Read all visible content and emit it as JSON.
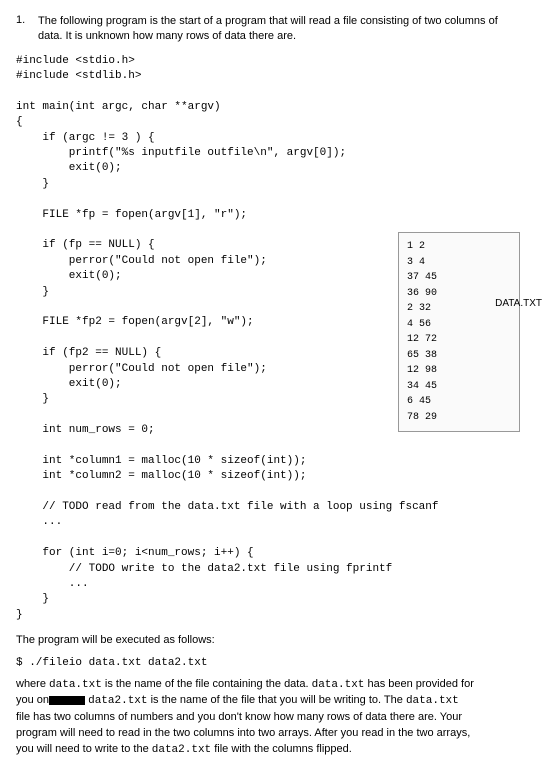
{
  "question": {
    "number": "1.",
    "text_line1": "The following program is the start of a program that will read a file consisting of two columns of",
    "text_line2": "data.  It is unknown how many rows of data there are."
  },
  "code": {
    "include1": "#include <stdio.h>",
    "include2": "#include <stdlib.h>",
    "blank1": "",
    "main_sig": "int main(int argc, char **argv)",
    "brace_open": "{",
    "argc_check": "    if (argc != 3 ) {",
    "printf_usage": "        printf(\"%s inputfile outfile\\n\", argv[0]);",
    "exit1": "        exit(0);",
    "close1": "    }",
    "blank2": "",
    "fopen1": "    FILE *fp = fopen(argv[1], \"r\");",
    "blank3": "",
    "null_check1": "    if (fp == NULL) {",
    "perror1": "        perror(\"Could not open file\");",
    "exit2": "        exit(0);",
    "close2": "    }",
    "blank4": "",
    "fopen2": "    FILE *fp2 = fopen(argv[2], \"w\");",
    "blank5": "",
    "null_check2": "    if (fp2 == NULL) {",
    "perror2": "        perror(\"Could not open file\");",
    "exit3": "        exit(0);",
    "close3": "    }",
    "blank6": "",
    "numrows": "    int num_rows = 0;",
    "blank7": "",
    "malloc1": "    int *column1 = malloc(10 * sizeof(int));",
    "malloc2": "    int *column2 = malloc(10 * sizeof(int));",
    "blank8": "",
    "todo1": "    // TODO read from the data.txt file with a loop using fscanf",
    "dots1": "    ...",
    "blank9": "",
    "forloop": "    for (int i=0; i<num_rows; i++) {",
    "todo2": "        // TODO write to the data2.txt file using fprintf",
    "dots2": "        ...",
    "close4": "    }",
    "brace_close": "}"
  },
  "data_file": {
    "label": "DATA.TXT",
    "r1": "1 2",
    "r2": "3 4",
    "r3": "37 45",
    "r4": "36 90",
    "r5": "2 32",
    "r6": "4 56",
    "r7": "12 72",
    "r8": "65 38",
    "r9": "12 98",
    "r10": "34 45",
    "r11": "6 45",
    "r12": "78 29"
  },
  "execution": {
    "intro": "The program will be executed as follows:",
    "cmd": "$ ./fileio data.txt data2.txt"
  },
  "description": {
    "p1a": "where ",
    "p1b": "data.txt",
    "p1c": " is the name of the file containing the data.  ",
    "p1d": "data.txt",
    "p1e": " has been provided for",
    "p2a": "you on",
    "p2b": "data2.txt",
    "p2c": " is the name of the file that you will be writing to.  The ",
    "p2d": "data.txt",
    "p3": "file has two columns of numbers and you don't know how many rows of data there are.  Your",
    "p4": "program will need to read in the two columns into two arrays.    After you read in the two arrays,",
    "p5a": "you will need to write to the ",
    "p5b": "data2.txt",
    "p5c": " file with the columns flipped."
  },
  "colors": {
    "text": "#000000",
    "background": "#ffffff",
    "box_border": "#999999",
    "box_bg": "#fafafa"
  },
  "fonts": {
    "body": "Arial, sans-serif",
    "code": "'Courier New', monospace",
    "body_size": 11,
    "code_size": 11,
    "data_size": 10
  }
}
